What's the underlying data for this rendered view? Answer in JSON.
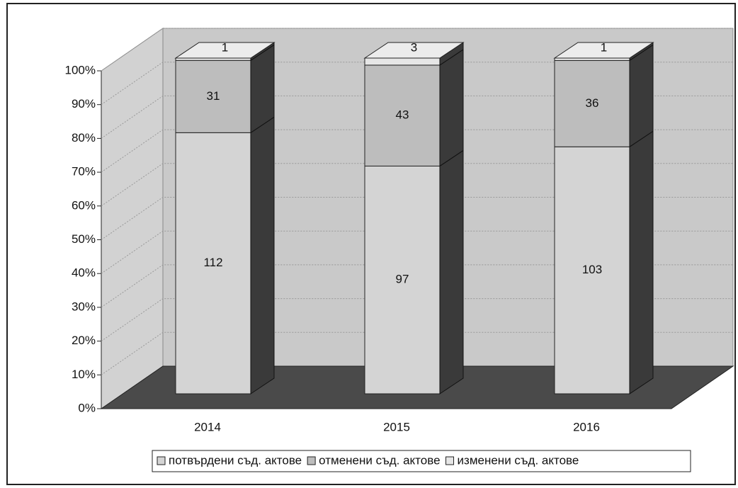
{
  "chart_data": {
    "type": "bar",
    "stacking": "percent",
    "categories": [
      "2014",
      "2015",
      "2016"
    ],
    "series": [
      {
        "name": "потвърдени съд. актове",
        "color": "#d4d4d4",
        "values": [
          112,
          97,
          103
        ]
      },
      {
        "name": "отменени съд. актове",
        "color": "#bdbdbd",
        "values": [
          31,
          43,
          36
        ]
      },
      {
        "name": "изменени съд. актове",
        "color": "#e6e6e6",
        "values": [
          1,
          3,
          1
        ]
      }
    ],
    "ylim": [
      0,
      100
    ],
    "yticks": [
      {
        "value": 0,
        "label": "0%"
      },
      {
        "value": 10,
        "label": "10%"
      },
      {
        "value": 20,
        "label": "20%"
      },
      {
        "value": 30,
        "label": "30%"
      },
      {
        "value": 40,
        "label": "40%"
      },
      {
        "value": 50,
        "label": "50%"
      },
      {
        "value": 60,
        "label": "60%"
      },
      {
        "value": 70,
        "label": "70%"
      },
      {
        "value": 80,
        "label": "80%"
      },
      {
        "value": 90,
        "label": "90%"
      },
      {
        "value": 100,
        "label": "100%"
      }
    ],
    "grid": true
  }
}
